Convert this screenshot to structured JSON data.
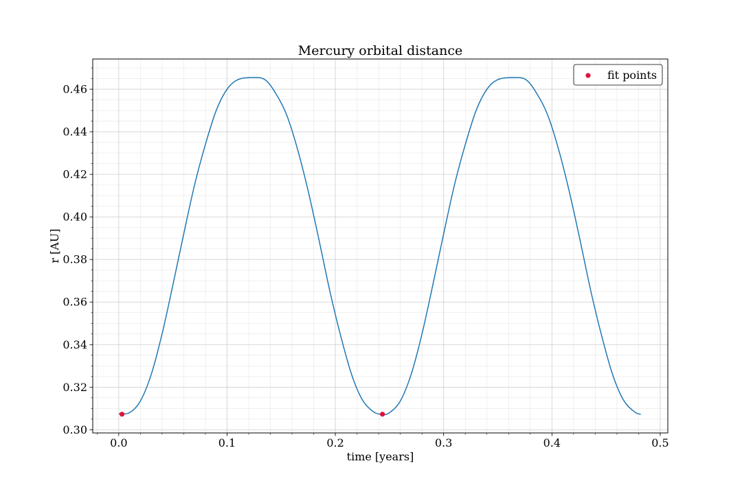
{
  "chart_data": {
    "type": "line",
    "title": "Mercury orbital distance",
    "xlabel": "time [years]",
    "ylabel": "r [AU]",
    "xlim": [
      -0.024,
      0.507
    ],
    "ylim": [
      0.2985,
      0.4742
    ],
    "x_ticks": [
      0.0,
      0.1,
      0.2,
      0.3,
      0.4,
      0.5
    ],
    "x_tick_labels": [
      "0.0",
      "0.1",
      "0.2",
      "0.3",
      "0.4",
      "0.5"
    ],
    "y_ticks": [
      0.3,
      0.32,
      0.34,
      0.36,
      0.38,
      0.4,
      0.42,
      0.44,
      0.46
    ],
    "y_tick_labels": [
      "0.30",
      "0.32",
      "0.34",
      "0.36",
      "0.38",
      "0.40",
      "0.42",
      "0.44",
      "0.46"
    ],
    "grid": true,
    "minor_grid": true,
    "legend_position": "top-right",
    "series": [
      {
        "kind": "line",
        "color": "#1f77b4",
        "x": [
          0.0,
          0.01,
          0.02,
          0.03,
          0.04,
          0.05,
          0.06,
          0.07,
          0.08,
          0.09,
          0.1,
          0.11,
          0.123,
          0.135,
          0.145,
          0.155,
          0.165,
          0.175,
          0.185,
          0.195,
          0.205,
          0.215,
          0.225,
          0.235,
          0.2435,
          0.25,
          0.26,
          0.27,
          0.28,
          0.29,
          0.3,
          0.31,
          0.32,
          0.33,
          0.34,
          0.35,
          0.364,
          0.376,
          0.386,
          0.396,
          0.406,
          0.416,
          0.426,
          0.436,
          0.446,
          0.456,
          0.466,
          0.476,
          0.482
        ],
        "y": [
          0.3075,
          0.308,
          0.3135,
          0.326,
          0.345,
          0.368,
          0.392,
          0.415,
          0.434,
          0.45,
          0.46,
          0.4645,
          0.4655,
          0.4645,
          0.458,
          0.448,
          0.432,
          0.412,
          0.389,
          0.365,
          0.344,
          0.326,
          0.314,
          0.3085,
          0.3072,
          0.308,
          0.3135,
          0.326,
          0.345,
          0.368,
          0.392,
          0.415,
          0.434,
          0.45,
          0.46,
          0.4645,
          0.4655,
          0.4645,
          0.458,
          0.448,
          0.432,
          0.412,
          0.389,
          0.365,
          0.344,
          0.326,
          0.314,
          0.3085,
          0.3072
        ]
      },
      {
        "kind": "scatter",
        "name": "fit points",
        "color": "#dc143c",
        "x": [
          0.003,
          0.2435
        ],
        "y": [
          0.3073,
          0.3073
        ]
      }
    ]
  }
}
